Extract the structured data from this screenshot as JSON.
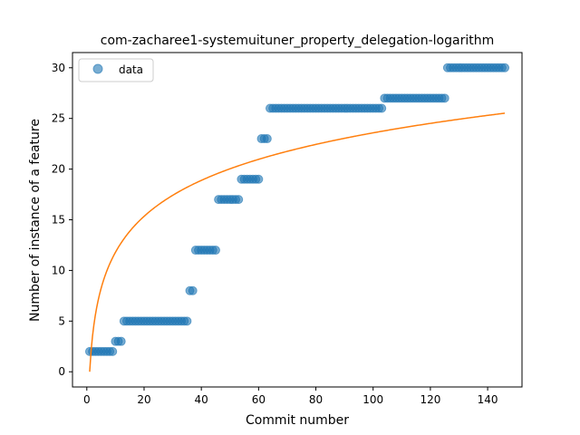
{
  "chart_data": {
    "type": "scatter",
    "title": "com-zacharee1-systemuituner_property_delegation-logarithm",
    "xlabel": "Commit number",
    "ylabel": "Number of instance of a feature",
    "xlim": [
      -5,
      152
    ],
    "ylim": [
      -1.5,
      31.5
    ],
    "xticks": [
      0,
      20,
      40,
      60,
      80,
      100,
      120,
      140
    ],
    "yticks": [
      0,
      5,
      10,
      15,
      20,
      25,
      30
    ],
    "grid": false,
    "legend": {
      "position": "top-left",
      "entries": [
        "data"
      ]
    },
    "series": [
      {
        "name": "data",
        "kind": "scatter",
        "color": "#1f77b4",
        "alpha": 0.6,
        "segments": [
          {
            "x_start": 1,
            "x_end": 9,
            "y": 2
          },
          {
            "x_start": 10,
            "x_end": 12,
            "y": 3
          },
          {
            "x_start": 13,
            "x_end": 35,
            "y": 5
          },
          {
            "x_start": 36,
            "x_end": 37,
            "y": 8
          },
          {
            "x_start": 38,
            "x_end": 45,
            "y": 12
          },
          {
            "x_start": 46,
            "x_end": 53,
            "y": 17
          },
          {
            "x_start": 54,
            "x_end": 60,
            "y": 19
          },
          {
            "x_start": 61,
            "x_end": 63,
            "y": 23
          },
          {
            "x_start": 64,
            "x_end": 103,
            "y": 26
          },
          {
            "x_start": 104,
            "x_end": 125,
            "y": 27
          },
          {
            "x_start": 126,
            "x_end": 146,
            "y": 30
          }
        ]
      },
      {
        "kind": "line",
        "color": "#ff7f0e",
        "function": "logarithm",
        "a": 5.12,
        "x_range": [
          1,
          146
        ]
      }
    ]
  }
}
